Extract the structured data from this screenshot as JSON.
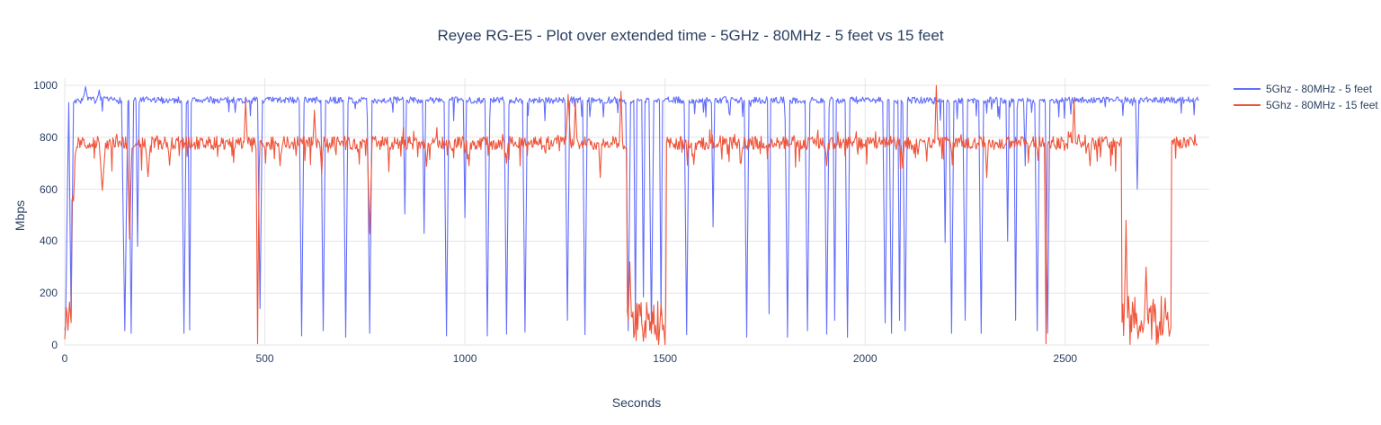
{
  "page": {
    "background": "#ffffff"
  },
  "chart_data": {
    "type": "line",
    "title": "Reyee RG-E5 - Plot over extended time - 5GHz - 80MHz - 5 feet vs 15 feet",
    "xlabel": "Seconds",
    "ylabel": "Mbps",
    "xlim": [
      0,
      2860
    ],
    "ylim": [
      0,
      1000
    ],
    "xticks": [
      0,
      500,
      1000,
      1500,
      2000,
      2500
    ],
    "yticks": [
      0,
      200,
      400,
      600,
      800,
      1000
    ],
    "grid": true,
    "grid_color": "#e5e5e5",
    "text_color": "#2a3f5f",
    "legend_position": "top-right",
    "series": [
      {
        "name": "5Ghz - 80MHz - 5 feet",
        "color": "#636efa",
        "seed": 7,
        "xend": 2834,
        "step": 2,
        "baseline": 943,
        "noise": 13,
        "down_jitter": {
          "prob": 0.05,
          "max": 75
        },
        "ramp": [
          [
            0,
            70
          ],
          [
            2,
            60
          ],
          [
            6,
            520
          ],
          [
            10,
            940
          ]
        ],
        "dips": [
          [
            16,
            110,
            6
          ],
          [
            150,
            55,
            8
          ],
          [
            166,
            45,
            6
          ],
          [
            182,
            380,
            4
          ],
          [
            298,
            45,
            6
          ],
          [
            312,
            58,
            4
          ],
          [
            488,
            140,
            6
          ],
          [
            592,
            35,
            6
          ],
          [
            646,
            55,
            6
          ],
          [
            702,
            30,
            6
          ],
          [
            762,
            45,
            6
          ],
          [
            850,
            505,
            4
          ],
          [
            898,
            430,
            4
          ],
          [
            954,
            35,
            6
          ],
          [
            1000,
            490,
            4
          ],
          [
            1056,
            35,
            6
          ],
          [
            1104,
            42,
            6
          ],
          [
            1150,
            50,
            6
          ],
          [
            1256,
            95,
            6
          ],
          [
            1300,
            40,
            6
          ],
          [
            1408,
            55,
            6
          ],
          [
            1426,
            95,
            4
          ],
          [
            1446,
            185,
            4
          ],
          [
            1466,
            60,
            6
          ],
          [
            1490,
            115,
            4
          ],
          [
            1554,
            40,
            6
          ],
          [
            1620,
            455,
            4
          ],
          [
            1704,
            30,
            6
          ],
          [
            1760,
            120,
            4
          ],
          [
            1806,
            30,
            6
          ],
          [
            1856,
            55,
            6
          ],
          [
            1904,
            42,
            6
          ],
          [
            1924,
            95,
            4
          ],
          [
            1956,
            30,
            6
          ],
          [
            2050,
            85,
            6
          ],
          [
            2066,
            45,
            6
          ],
          [
            2086,
            95,
            4
          ],
          [
            2100,
            55,
            6
          ],
          [
            2200,
            395,
            4
          ],
          [
            2216,
            45,
            6
          ],
          [
            2250,
            95,
            6
          ],
          [
            2290,
            45,
            6
          ],
          [
            2356,
            400,
            4
          ],
          [
            2376,
            95,
            4
          ],
          [
            2400,
            690,
            4
          ],
          [
            2430,
            55,
            6
          ],
          [
            2456,
            45,
            6
          ],
          [
            2680,
            600,
            4
          ]
        ],
        "spikes": [
          [
            52,
            995,
            6
          ],
          [
            86,
            982,
            4
          ]
        ]
      },
      {
        "name": "5Ghz - 80MHz - 15 feet",
        "color": "#ef553b",
        "seed": 13,
        "xend": 2830,
        "step": 2,
        "baseline": 778,
        "noise": 26,
        "down_jitter": {
          "prob": 0.07,
          "max": 90
        },
        "up_jitter": {
          "prob": 0.05,
          "max": 40
        },
        "ramp": [
          [
            0,
            20
          ],
          [
            4,
            150
          ],
          [
            8,
            70
          ],
          [
            12,
            160
          ],
          [
            16,
            90
          ],
          [
            18,
            600
          ],
          [
            22,
            560
          ],
          [
            26,
            745
          ],
          [
            30,
            778
          ]
        ],
        "low_regions": [
          {
            "from": 1406,
            "to": 1502,
            "level": 95,
            "noise": 78
          },
          {
            "from": 2642,
            "to": 2764,
            "level": 105,
            "noise": 85
          }
        ],
        "dips": [
          [
            94,
            595,
            8
          ],
          [
            162,
            408,
            6
          ],
          [
            208,
            648,
            6
          ],
          [
            262,
            692,
            4
          ],
          [
            482,
            5,
            4
          ],
          [
            538,
            690,
            4
          ],
          [
            642,
            660,
            4
          ],
          [
            762,
            428,
            6
          ],
          [
            904,
            688,
            4
          ],
          [
            1010,
            690,
            4
          ],
          [
            1104,
            700,
            4
          ],
          [
            1338,
            645,
            4
          ],
          [
            1572,
            695,
            4
          ],
          [
            1690,
            700,
            4
          ],
          [
            1904,
            690,
            4
          ],
          [
            2094,
            682,
            4
          ],
          [
            2304,
            645,
            4
          ],
          [
            2452,
            5,
            4
          ],
          [
            2562,
            690,
            4
          ]
        ],
        "spikes": [
          [
            452,
            945,
            4
          ],
          [
            624,
            905,
            4
          ],
          [
            1258,
            965,
            6
          ],
          [
            1276,
            940,
            4
          ],
          [
            1390,
            978,
            4
          ],
          [
            1412,
            320,
            4
          ],
          [
            2178,
            1000,
            4
          ],
          [
            2522,
            945,
            4
          ],
          [
            2652,
            480,
            4
          ],
          [
            2702,
            300,
            4
          ]
        ]
      }
    ]
  }
}
